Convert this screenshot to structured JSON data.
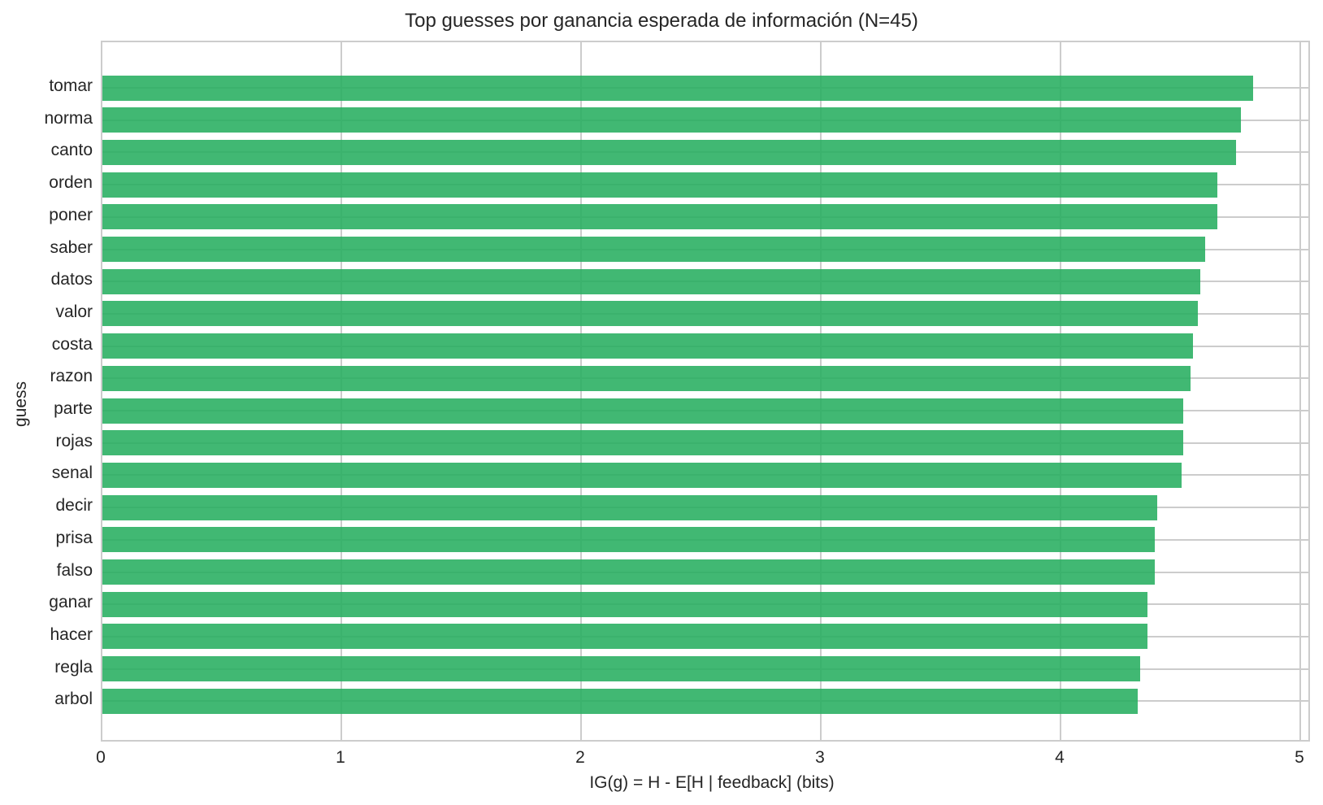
{
  "chart_data": {
    "type": "bar",
    "orientation": "horizontal",
    "title": "Top guesses por ganancia esperada de información (N=45)",
    "xlabel": "IG(g) = H - E[H | feedback]  (bits)",
    "ylabel": "guess",
    "xlim": [
      0,
      5.05
    ],
    "xticks": [
      0,
      1,
      2,
      3,
      4,
      5
    ],
    "grid": true,
    "legend": null,
    "bar_color": "#27ae60",
    "categories": [
      "tomar",
      "norma",
      "canto",
      "orden",
      "poner",
      "saber",
      "datos",
      "valor",
      "costa",
      "razon",
      "parte",
      "rojas",
      "senal",
      "decir",
      "prisa",
      "falso",
      "ganar",
      "hacer",
      "regla",
      "arbol"
    ],
    "values": [
      4.8,
      4.75,
      4.73,
      4.65,
      4.65,
      4.6,
      4.58,
      4.57,
      4.55,
      4.54,
      4.51,
      4.51,
      4.5,
      4.4,
      4.39,
      4.39,
      4.36,
      4.36,
      4.33,
      4.32
    ]
  }
}
